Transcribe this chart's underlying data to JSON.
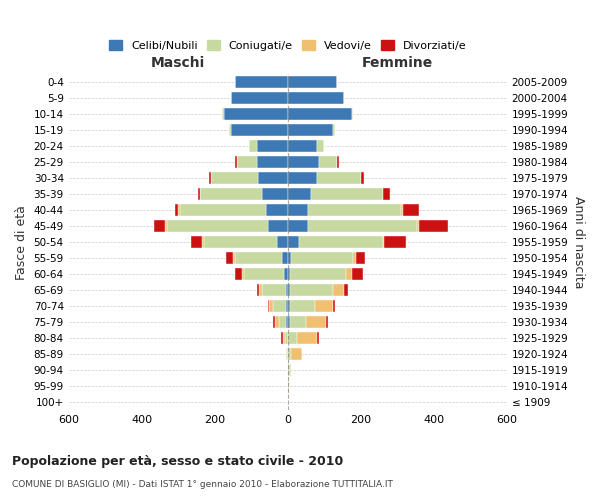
{
  "age_groups": [
    "100+",
    "95-99",
    "90-94",
    "85-89",
    "80-84",
    "75-79",
    "70-74",
    "65-69",
    "60-64",
    "55-59",
    "50-54",
    "45-49",
    "40-44",
    "35-39",
    "30-34",
    "25-29",
    "20-24",
    "15-19",
    "10-14",
    "5-9",
    "0-4"
  ],
  "birth_years": [
    "≤ 1909",
    "1910-1914",
    "1915-1919",
    "1920-1924",
    "1925-1929",
    "1930-1934",
    "1935-1939",
    "1940-1944",
    "1945-1949",
    "1950-1954",
    "1955-1959",
    "1960-1964",
    "1965-1969",
    "1970-1974",
    "1975-1979",
    "1980-1984",
    "1985-1989",
    "1990-1994",
    "1995-1999",
    "2000-2004",
    "2005-2009"
  ],
  "maschi": {
    "celibi": [
      0,
      0,
      0,
      0,
      0,
      5,
      5,
      5,
      10,
      15,
      30,
      55,
      60,
      70,
      80,
      85,
      85,
      155,
      175,
      155,
      145
    ],
    "coniugati": [
      0,
      0,
      0,
      2,
      8,
      20,
      35,
      65,
      110,
      130,
      200,
      275,
      235,
      170,
      130,
      55,
      20,
      5,
      5,
      0,
      0
    ],
    "vedovi": [
      0,
      0,
      0,
      2,
      5,
      10,
      10,
      8,
      5,
      5,
      5,
      5,
      5,
      0,
      0,
      0,
      0,
      0,
      0,
      0,
      0
    ],
    "divorziati": [
      0,
      0,
      0,
      0,
      5,
      5,
      5,
      5,
      20,
      20,
      30,
      30,
      10,
      5,
      5,
      5,
      0,
      0,
      0,
      0,
      0
    ]
  },
  "femmine": {
    "nubili": [
      0,
      0,
      0,
      0,
      0,
      5,
      5,
      5,
      5,
      10,
      30,
      55,
      55,
      65,
      80,
      85,
      80,
      125,
      175,
      155,
      135
    ],
    "coniugate": [
      0,
      2,
      5,
      10,
      25,
      45,
      70,
      120,
      155,
      170,
      230,
      300,
      255,
      195,
      120,
      50,
      20,
      5,
      5,
      0,
      0
    ],
    "vedove": [
      0,
      2,
      5,
      30,
      55,
      55,
      50,
      30,
      15,
      8,
      5,
      5,
      5,
      0,
      0,
      0,
      0,
      0,
      0,
      0,
      0
    ],
    "divorziate": [
      0,
      0,
      0,
      0,
      5,
      5,
      5,
      10,
      30,
      25,
      60,
      80,
      45,
      20,
      10,
      5,
      0,
      0,
      0,
      0,
      0
    ]
  },
  "colors": {
    "celibi": "#3d7ab5",
    "coniugati": "#c5d9a0",
    "vedovi": "#f0c070",
    "divorziati": "#cc1111"
  },
  "title": "Popolazione per età, sesso e stato civile - 2010",
  "subtitle": "COMUNE DI BASIGLIO (MI) - Dati ISTAT 1° gennaio 2010 - Elaborazione TUTTITALIA.IT",
  "ylabel_left": "Fasce di età",
  "ylabel_right": "Anni di nascita",
  "xlabel_maschi": "Maschi",
  "xlabel_femmine": "Femmine",
  "xlim": 600,
  "background_color": "#ffffff",
  "grid_color": "#cccccc"
}
